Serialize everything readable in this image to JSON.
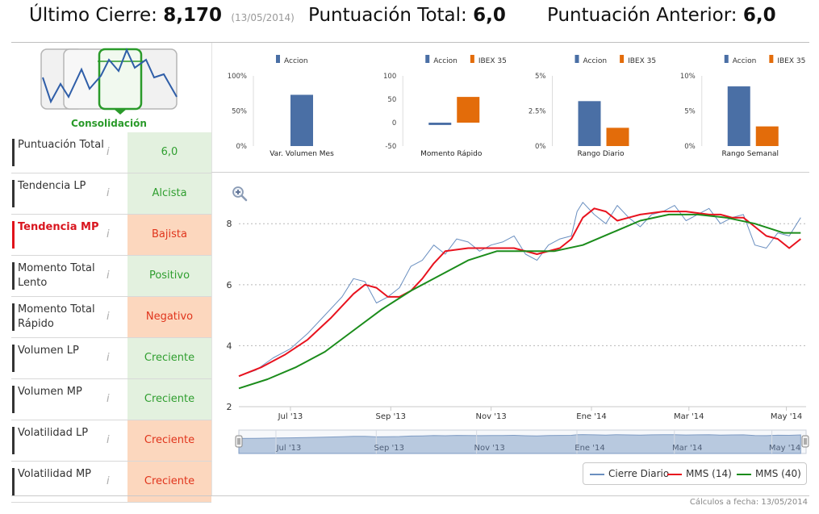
{
  "header": {
    "ultimo_label": "Último Cierre:",
    "ultimo_value": "8,170",
    "ultimo_date": "(13/05/2014)",
    "total_label": "Puntuación Total:",
    "total_value": "6,0",
    "anterior_label": "Puntuación Anterior:",
    "anterior_value": "6,0"
  },
  "badge": {
    "label": "Consolidación",
    "icon": "consolidation-pattern-icon"
  },
  "factors": [
    {
      "label": "Puntuación Total",
      "value": "6,0",
      "status": "good",
      "alert": false
    },
    {
      "label": "Tendencia LP",
      "value": "Alcista",
      "status": "good",
      "alert": false
    },
    {
      "label": "Tendencia MP",
      "value": "Bajista",
      "status": "bad",
      "alert": true
    },
    {
      "label": "Momento Total Lento",
      "value": "Positivo",
      "status": "good",
      "alert": false
    },
    {
      "label": "Momento Total Rápido",
      "value": "Negativo",
      "status": "bad",
      "alert": false
    },
    {
      "label": "Volumen LP",
      "value": "Creciente",
      "status": "good",
      "alert": false
    },
    {
      "label": "Volumen MP",
      "value": "Creciente",
      "status": "good",
      "alert": false
    },
    {
      "label": "Volatilidad LP",
      "value": "Creciente",
      "status": "bad",
      "alert": false
    },
    {
      "label": "Volatilidad MP",
      "value": "Creciente",
      "status": "bad",
      "alert": false
    }
  ],
  "info_icon_glyph": "i",
  "colors": {
    "accion": "#4a6fa5",
    "ibex": "#e36c0a",
    "good_bg": "#e3f1df",
    "bad_bg": "#fcd7be",
    "sma14": "#e8121e",
    "sma40": "#1b8c1b",
    "price": "#6a8fc0"
  },
  "chart_data": [
    {
      "type": "bar",
      "title": "Var. Volumen Mes",
      "legend": [
        "Accion"
      ],
      "ylim": [
        0,
        100
      ],
      "ticks": [
        "100%",
        "50%",
        "0%"
      ],
      "tick_values": [
        100,
        50,
        0
      ],
      "series": [
        {
          "name": "Accion",
          "values": [
            73
          ]
        }
      ]
    },
    {
      "type": "bar",
      "title": "Momento Rápido",
      "legend": [
        "Accion",
        "IBEX 35"
      ],
      "ylim": [
        -50,
        100
      ],
      "ticks": [
        "100",
        "50",
        "0",
        "-50"
      ],
      "tick_values": [
        100,
        50,
        0,
        -50
      ],
      "series": [
        {
          "name": "Accion",
          "values": [
            -5
          ]
        },
        {
          "name": "IBEX 35",
          "values": [
            55
          ]
        }
      ]
    },
    {
      "type": "bar",
      "title": "Rango Diario",
      "legend": [
        "Accion",
        "IBEX 35"
      ],
      "ylim": [
        0,
        5
      ],
      "ticks": [
        "5%",
        "2.5%",
        "0%"
      ],
      "tick_values": [
        5,
        2.5,
        0
      ],
      "series": [
        {
          "name": "Accion",
          "values": [
            3.2
          ]
        },
        {
          "name": "IBEX 35",
          "values": [
            1.3
          ]
        }
      ]
    },
    {
      "type": "bar",
      "title": "Rango Semanal",
      "legend": [
        "Accion",
        "IBEX 35"
      ],
      "ylim": [
        0,
        10
      ],
      "ticks": [
        "10%",
        "5%",
        "0%"
      ],
      "tick_values": [
        10,
        5,
        0
      ],
      "series": [
        {
          "name": "Accion",
          "values": [
            8.5
          ]
        },
        {
          "name": "IBEX 35",
          "values": [
            2.8
          ]
        }
      ]
    },
    {
      "type": "line",
      "title": "",
      "ylim": [
        2,
        8.8
      ],
      "y_ticks": [
        "8",
        "6",
        "4",
        "2"
      ],
      "y_tick_values": [
        8,
        6,
        4,
        2
      ],
      "x_ticks": [
        "Jul '13",
        "Sep '13",
        "Nov '13",
        "Ene '14",
        "Mar '14",
        "May '14"
      ],
      "x_tick_values": [
        18,
        53,
        88,
        123,
        157,
        191
      ],
      "series": [
        {
          "name": "Cierre Diario",
          "x": [
            0,
            6,
            12,
            18,
            24,
            30,
            36,
            40,
            44,
            48,
            52,
            56,
            60,
            64,
            68,
            72,
            76,
            80,
            84,
            88,
            92,
            96,
            100,
            104,
            108,
            112,
            116,
            118,
            120,
            124,
            128,
            132,
            136,
            140,
            144,
            148,
            152,
            156,
            160,
            164,
            168,
            172,
            176,
            180,
            184,
            188,
            192,
            196
          ],
          "values": [
            3.0,
            3.2,
            3.6,
            3.9,
            4.4,
            5.0,
            5.6,
            6.2,
            6.1,
            5.4,
            5.6,
            5.9,
            6.6,
            6.8,
            7.3,
            7.0,
            7.5,
            7.4,
            7.1,
            7.3,
            7.4,
            7.6,
            7.0,
            6.8,
            7.3,
            7.5,
            7.6,
            8.4,
            8.7,
            8.3,
            8.0,
            8.6,
            8.2,
            7.9,
            8.3,
            8.4,
            8.6,
            8.1,
            8.3,
            8.5,
            8.0,
            8.2,
            8.3,
            7.3,
            7.2,
            7.7,
            7.6,
            8.2
          ]
        },
        {
          "name": "MMS (14)",
          "x": [
            0,
            8,
            16,
            24,
            32,
            40,
            44,
            48,
            52,
            56,
            60,
            64,
            68,
            72,
            80,
            88,
            96,
            104,
            112,
            116,
            120,
            124,
            128,
            132,
            136,
            140,
            148,
            156,
            164,
            168,
            172,
            176,
            180,
            184,
            188,
            192,
            196
          ],
          "values": [
            3.0,
            3.3,
            3.7,
            4.2,
            4.9,
            5.7,
            6.0,
            5.9,
            5.6,
            5.6,
            5.8,
            6.2,
            6.7,
            7.1,
            7.2,
            7.2,
            7.2,
            7.0,
            7.2,
            7.5,
            8.2,
            8.5,
            8.4,
            8.1,
            8.2,
            8.3,
            8.4,
            8.4,
            8.3,
            8.3,
            8.2,
            8.2,
            7.9,
            7.6,
            7.5,
            7.2,
            7.5
          ]
        },
        {
          "name": "MMS (40)",
          "x": [
            0,
            10,
            20,
            30,
            40,
            50,
            60,
            70,
            80,
            90,
            100,
            110,
            120,
            130,
            140,
            150,
            160,
            170,
            180,
            190,
            196
          ],
          "values": [
            2.6,
            2.9,
            3.3,
            3.8,
            4.5,
            5.2,
            5.8,
            6.3,
            6.8,
            7.1,
            7.1,
            7.1,
            7.3,
            7.7,
            8.1,
            8.3,
            8.3,
            8.2,
            8.0,
            7.7,
            7.7
          ]
        }
      ]
    }
  ],
  "navigator": {
    "labels": [
      "Jul '13",
      "Sep '13",
      "Nov '13",
      "Ene '14",
      "Mar '14",
      "May '14"
    ],
    "label_values": [
      18,
      53,
      88,
      123,
      157,
      191
    ]
  },
  "legend": {
    "cierre": "Cierre Diario",
    "mms14": "MMS (14)",
    "mms40": "MMS (40)"
  },
  "footer": {
    "note": "Cálculos a fecha: 13/05/2014"
  }
}
